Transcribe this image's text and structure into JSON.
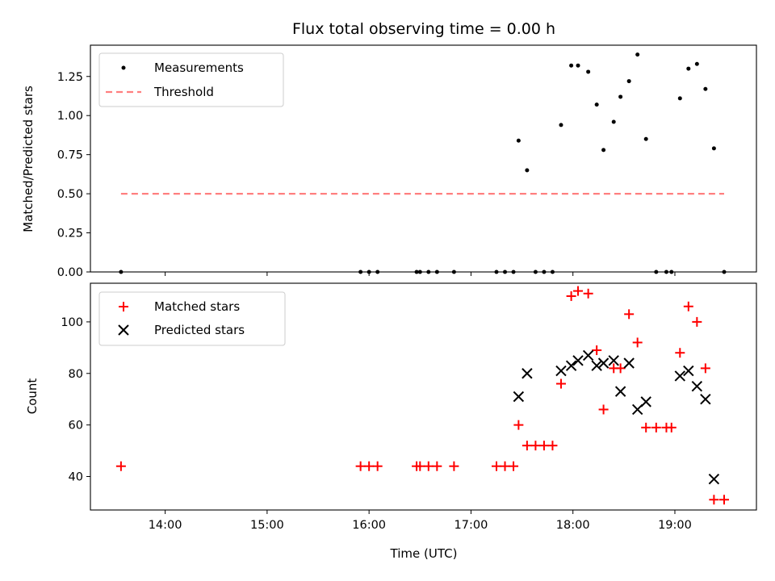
{
  "chart_data": [
    {
      "type": "scatter",
      "title": "Flux total observing time = 0.00 h",
      "xlabel": "",
      "ylabel": "Matched/Predicted stars",
      "ylim": [
        0,
        1.45
      ],
      "yticks": [
        "0.00",
        "0.25",
        "0.50",
        "0.75",
        "1.00",
        "1.25"
      ],
      "legend": {
        "placement": "top-left",
        "entries": [
          "Measurements",
          "Threshold"
        ]
      },
      "series": [
        {
          "name": "Measurements",
          "marker": "dot",
          "color": "#000000",
          "points": [
            [
              "13:34",
              0
            ],
            [
              "15:55",
              0
            ],
            [
              "16:00",
              0
            ],
            [
              "16:05",
              0
            ],
            [
              "16:28",
              0
            ],
            [
              "16:30",
              0
            ],
            [
              "16:35",
              0
            ],
            [
              "16:40",
              0
            ],
            [
              "16:50",
              0
            ],
            [
              "17:15",
              0
            ],
            [
              "17:20",
              0
            ],
            [
              "17:25",
              0
            ],
            [
              "17:28",
              0.84
            ],
            [
              "17:33",
              0.65
            ],
            [
              "17:38",
              0
            ],
            [
              "17:43",
              0
            ],
            [
              "17:48",
              0
            ],
            [
              "17:53",
              0.94
            ],
            [
              "17:59",
              1.32
            ],
            [
              "18:03",
              1.32
            ],
            [
              "18:09",
              1.28
            ],
            [
              "18:14",
              1.07
            ],
            [
              "18:18",
              0.78
            ],
            [
              "18:24",
              0.96
            ],
            [
              "18:28",
              1.12
            ],
            [
              "18:33",
              1.22
            ],
            [
              "18:38",
              1.39
            ],
            [
              "18:43",
              0.85
            ],
            [
              "18:49",
              0
            ],
            [
              "18:55",
              0
            ],
            [
              "18:58",
              0
            ],
            [
              "19:03",
              1.11
            ],
            [
              "19:08",
              1.3
            ],
            [
              "19:13",
              1.33
            ],
            [
              "19:18",
              1.17
            ],
            [
              "19:23",
              0.79
            ],
            [
              "19:29",
              0
            ]
          ]
        },
        {
          "name": "Threshold",
          "marker": "dashed-line",
          "color": "#ff7f7f",
          "points": [
            [
              "13:34",
              0.5
            ],
            [
              "19:29",
              0.5
            ]
          ]
        }
      ]
    },
    {
      "type": "scatter",
      "title": "",
      "xlabel": "Time (UTC)",
      "ylabel": "Count",
      "ylim": [
        27,
        115
      ],
      "yticks": [
        "40",
        "60",
        "80",
        "100"
      ],
      "xlim": [
        "13:16",
        "19:48"
      ],
      "xticks": [
        "14:00",
        "15:00",
        "16:00",
        "17:00",
        "18:00",
        "19:00"
      ],
      "legend": {
        "placement": "top-left",
        "entries": [
          "Matched stars",
          "Predicted stars"
        ]
      },
      "series": [
        {
          "name": "Matched stars",
          "marker": "plus",
          "color": "#ff0000",
          "points": [
            [
              "13:34",
              44
            ],
            [
              "15:55",
              44
            ],
            [
              "16:00",
              44
            ],
            [
              "16:05",
              44
            ],
            [
              "16:28",
              44
            ],
            [
              "16:30",
              44
            ],
            [
              "16:35",
              44
            ],
            [
              "16:40",
              44
            ],
            [
              "16:50",
              44
            ],
            [
              "17:15",
              44
            ],
            [
              "17:20",
              44
            ],
            [
              "17:25",
              44
            ],
            [
              "17:28",
              60
            ],
            [
              "17:33",
              52
            ],
            [
              "17:38",
              52
            ],
            [
              "17:43",
              52
            ],
            [
              "17:48",
              52
            ],
            [
              "17:53",
              76
            ],
            [
              "17:59",
              110
            ],
            [
              "18:03",
              112
            ],
            [
              "18:09",
              111
            ],
            [
              "18:14",
              89
            ],
            [
              "18:18",
              66
            ],
            [
              "18:24",
              82
            ],
            [
              "18:28",
              82
            ],
            [
              "18:33",
              103
            ],
            [
              "18:38",
              92
            ],
            [
              "18:43",
              59
            ],
            [
              "18:49",
              59
            ],
            [
              "18:55",
              59
            ],
            [
              "18:58",
              59
            ],
            [
              "19:03",
              88
            ],
            [
              "19:08",
              106
            ],
            [
              "19:13",
              100
            ],
            [
              "19:18",
              82
            ],
            [
              "19:23",
              31
            ],
            [
              "19:29",
              31
            ]
          ]
        },
        {
          "name": "Predicted stars",
          "marker": "x",
          "color": "#000000",
          "points": [
            [
              "17:28",
              71
            ],
            [
              "17:33",
              80
            ],
            [
              "17:53",
              81
            ],
            [
              "17:59",
              83
            ],
            [
              "18:03",
              85
            ],
            [
              "18:09",
              87
            ],
            [
              "18:14",
              83
            ],
            [
              "18:18",
              84
            ],
            [
              "18:24",
              85
            ],
            [
              "18:28",
              73
            ],
            [
              "18:33",
              84
            ],
            [
              "18:38",
              66
            ],
            [
              "18:43",
              69
            ],
            [
              "19:03",
              79
            ],
            [
              "19:08",
              81
            ],
            [
              "19:13",
              75
            ],
            [
              "19:18",
              70
            ],
            [
              "19:23",
              39
            ]
          ]
        }
      ]
    }
  ]
}
